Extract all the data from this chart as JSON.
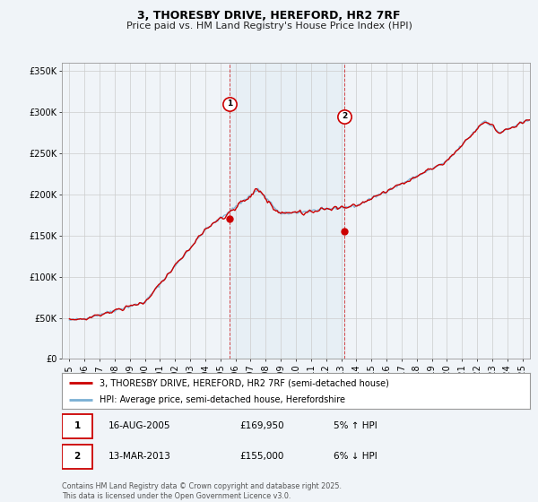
{
  "title": "3, THORESBY DRIVE, HEREFORD, HR2 7RF",
  "subtitle": "Price paid vs. HM Land Registry's House Price Index (HPI)",
  "ylabel_ticks": [
    "£0",
    "£50K",
    "£100K",
    "£150K",
    "£200K",
    "£250K",
    "£300K",
    "£350K"
  ],
  "ytick_values": [
    0,
    50000,
    100000,
    150000,
    200000,
    250000,
    300000,
    350000
  ],
  "ylim": [
    0,
    360000
  ],
  "xlim_start": 1994.5,
  "xlim_end": 2025.5,
  "sale1_year": 2005.62,
  "sale1_price": 169950,
  "sale1_marker_y": 310000,
  "sale2_year": 2013.2,
  "sale2_price": 155000,
  "sale2_marker_y": 295000,
  "red_color": "#cc0000",
  "blue_color": "#7ab0d4",
  "background_color": "#f0f4f8",
  "grid_color": "#cccccc",
  "legend_label_red": "3, THORESBY DRIVE, HEREFORD, HR2 7RF (semi-detached house)",
  "legend_label_blue": "HPI: Average price, semi-detached house, Herefordshire",
  "annotation1_label": "1",
  "annotation1_date": "16-AUG-2005",
  "annotation1_price": "£169,950",
  "annotation1_pct": "5% ↑ HPI",
  "annotation2_label": "2",
  "annotation2_date": "13-MAR-2013",
  "annotation2_price": "£155,000",
  "annotation2_pct": "6% ↓ HPI",
  "copyright_text": "Contains HM Land Registry data © Crown copyright and database right 2025.\nThis data is licensed under the Open Government Licence v3.0.",
  "title_fontsize": 9,
  "subtitle_fontsize": 8,
  "tick_fontsize": 7,
  "legend_fontsize": 7,
  "annot_fontsize": 7.5
}
